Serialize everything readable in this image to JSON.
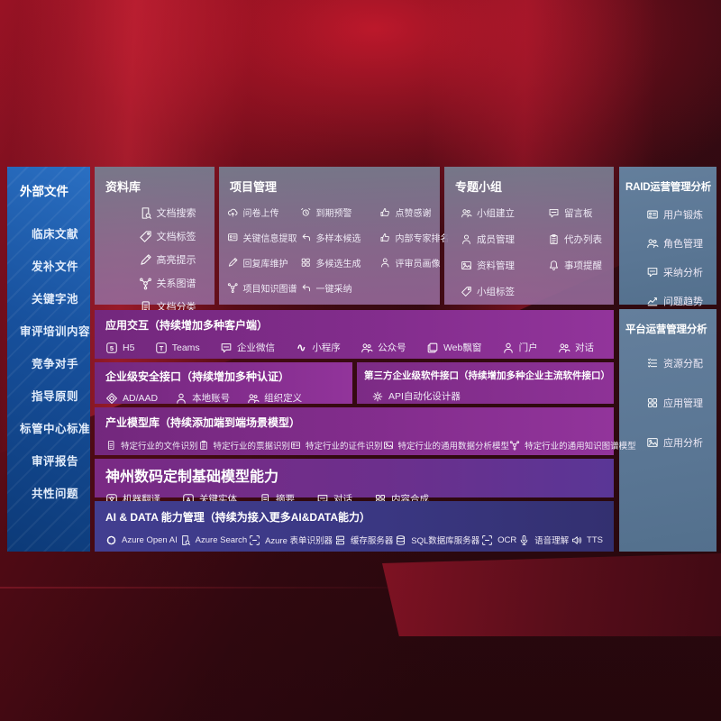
{
  "palette": {
    "background_red": "#8c1322",
    "sidebar_blue": "#1a5aa8",
    "panel_gray_purple": "#85738f",
    "panel_blue_gray": "#5e7c9a",
    "row_purple": "#7c2b85",
    "row_indigo": "#3e3a8c"
  },
  "sidebar": {
    "title": "外部文件",
    "items": [
      "临床文献",
      "发补文件",
      "关键字池",
      "审评培训内容",
      "竞争对手",
      "指导原则",
      "标管中心标准",
      "审评报告",
      "共性问题"
    ]
  },
  "panels": {
    "repository": {
      "title": "资料库",
      "items": [
        {
          "label": "文档搜索",
          "icon": "doc-search-icon"
        },
        {
          "label": "文档标签",
          "icon": "doc-tag-icon"
        },
        {
          "label": "高亮提示",
          "icon": "highlighter-icon"
        },
        {
          "label": "关系图谱",
          "icon": "relation-graph-icon"
        },
        {
          "label": "文档分类",
          "icon": "doc-classify-icon"
        }
      ]
    },
    "project": {
      "title": "项目管理",
      "items": [
        {
          "label": "问卷上传",
          "icon": "cloud-upload-icon"
        },
        {
          "label": "到期预警",
          "icon": "alarm-icon"
        },
        {
          "label": "点赞感谢",
          "icon": "thumbs-up-icon"
        },
        {
          "label": "关键信息提取",
          "icon": "key-info-icon"
        },
        {
          "label": "多样本候选",
          "icon": "multi-sample-icon"
        },
        {
          "label": "内部专家排名",
          "icon": "expert-rank-icon"
        },
        {
          "label": "回复库维护",
          "icon": "reply-maintain-icon"
        },
        {
          "label": "多候选生成",
          "icon": "multi-candidate-icon"
        },
        {
          "label": "评审员画像",
          "icon": "reviewer-portrait-icon"
        },
        {
          "label": "项目知识图谱",
          "icon": "project-graph-icon"
        },
        {
          "label": "一键采纳",
          "icon": "one-click-adopt-icon"
        }
      ]
    },
    "group": {
      "title": "专题小组",
      "items": [
        {
          "label": "小组建立",
          "icon": "group-create-icon"
        },
        {
          "label": "留言板",
          "icon": "message-board-icon"
        },
        {
          "label": "成员管理",
          "icon": "member-manage-icon"
        },
        {
          "label": "代办列表",
          "icon": "todo-list-icon"
        },
        {
          "label": "资料管理",
          "icon": "material-manage-icon"
        },
        {
          "label": "事项提醒",
          "icon": "reminder-icon"
        },
        {
          "label": "小组标签",
          "icon": "group-tag-icon"
        }
      ]
    },
    "raid": {
      "title": "RAID运营管理分析",
      "items": [
        {
          "label": "用户锻炼",
          "icon": "user-card-icon"
        },
        {
          "label": "角色管理",
          "icon": "role-manage-icon"
        },
        {
          "label": "采纳分析",
          "icon": "adoption-analysis-icon"
        },
        {
          "label": "问题趋势",
          "icon": "issue-trend-icon"
        }
      ]
    },
    "platform": {
      "title": "平台运营管理分析",
      "items": [
        {
          "label": "资源分配",
          "icon": "resource-alloc-icon"
        },
        {
          "label": "应用管理",
          "icon": "app-manage-icon"
        },
        {
          "label": "应用分析",
          "icon": "app-analysis-icon"
        }
      ]
    }
  },
  "rows": {
    "interaction": {
      "title": "应用交互（持续增加多种客户端）",
      "items": [
        {
          "label": "H5",
          "icon": "h5-icon"
        },
        {
          "label": "Teams",
          "icon": "teams-icon"
        },
        {
          "label": "企业微信",
          "icon": "wecom-icon"
        },
        {
          "label": "小程序",
          "icon": "miniprogram-icon"
        },
        {
          "label": "公众号",
          "icon": "official-account-icon"
        },
        {
          "label": "Web飘窗",
          "icon": "web-popup-icon"
        },
        {
          "label": "门户",
          "icon": "portal-icon"
        },
        {
          "label": "对话",
          "icon": "dialog-icon"
        }
      ]
    },
    "security": {
      "title": "企业级安全接口（持续增加多种认证）",
      "items": [
        {
          "label": "AD/AAD",
          "icon": "ad-aad-icon"
        },
        {
          "label": "本地账号",
          "icon": "local-account-icon"
        },
        {
          "label": "组织定义",
          "icon": "org-define-icon"
        }
      ]
    },
    "thirdparty": {
      "title": "第三方企业级软件接口（持续增加多种企业主流软件接口）",
      "items": [
        {
          "label": "API自动化设计器",
          "icon": "api-designer-icon"
        }
      ]
    },
    "models": {
      "title": "产业模型库（持续添加端到端场景模型）",
      "items": [
        {
          "label": "特定行业的文件识别",
          "icon": "file-recognition-icon"
        },
        {
          "label": "特定行业的票据识别",
          "icon": "invoice-recognition-icon"
        },
        {
          "label": "特定行业的证件识别",
          "icon": "id-recognition-icon"
        },
        {
          "label": "特定行业的通用数据分析模型",
          "icon": "data-analysis-model-icon"
        },
        {
          "label": "特定行业的通用知识图谱模型",
          "icon": "knowledge-graph-model-icon"
        }
      ]
    },
    "foundation": {
      "title": "神州数码定制基础模型能力",
      "items": [
        {
          "label": "机器翻译",
          "icon": "translate-icon"
        },
        {
          "label": "关键实体",
          "icon": "key-entity-icon"
        },
        {
          "label": "摘要",
          "icon": "summary-icon"
        },
        {
          "label": "对话",
          "icon": "chat-icon"
        },
        {
          "label": "内容合成",
          "icon": "content-compose-icon"
        }
      ]
    },
    "aidata": {
      "title": "AI & DATA 能力管理（持续为接入更多AI&DATA能力）",
      "items": [
        {
          "label": "Azure Open AI",
          "icon": "openai-icon"
        },
        {
          "label": "Azure Search",
          "icon": "azure-search-icon"
        },
        {
          "label": "Azure 表单识别器",
          "icon": "form-recognizer-icon"
        },
        {
          "label": "缓存服务器",
          "icon": "cache-server-icon"
        },
        {
          "label": "SQL数据库服务器",
          "icon": "sql-server-icon"
        },
        {
          "label": "OCR",
          "icon": "ocr-icon"
        },
        {
          "label": "语音理解",
          "icon": "speech-icon"
        },
        {
          "label": "TTS",
          "icon": "tts-icon"
        }
      ]
    }
  }
}
